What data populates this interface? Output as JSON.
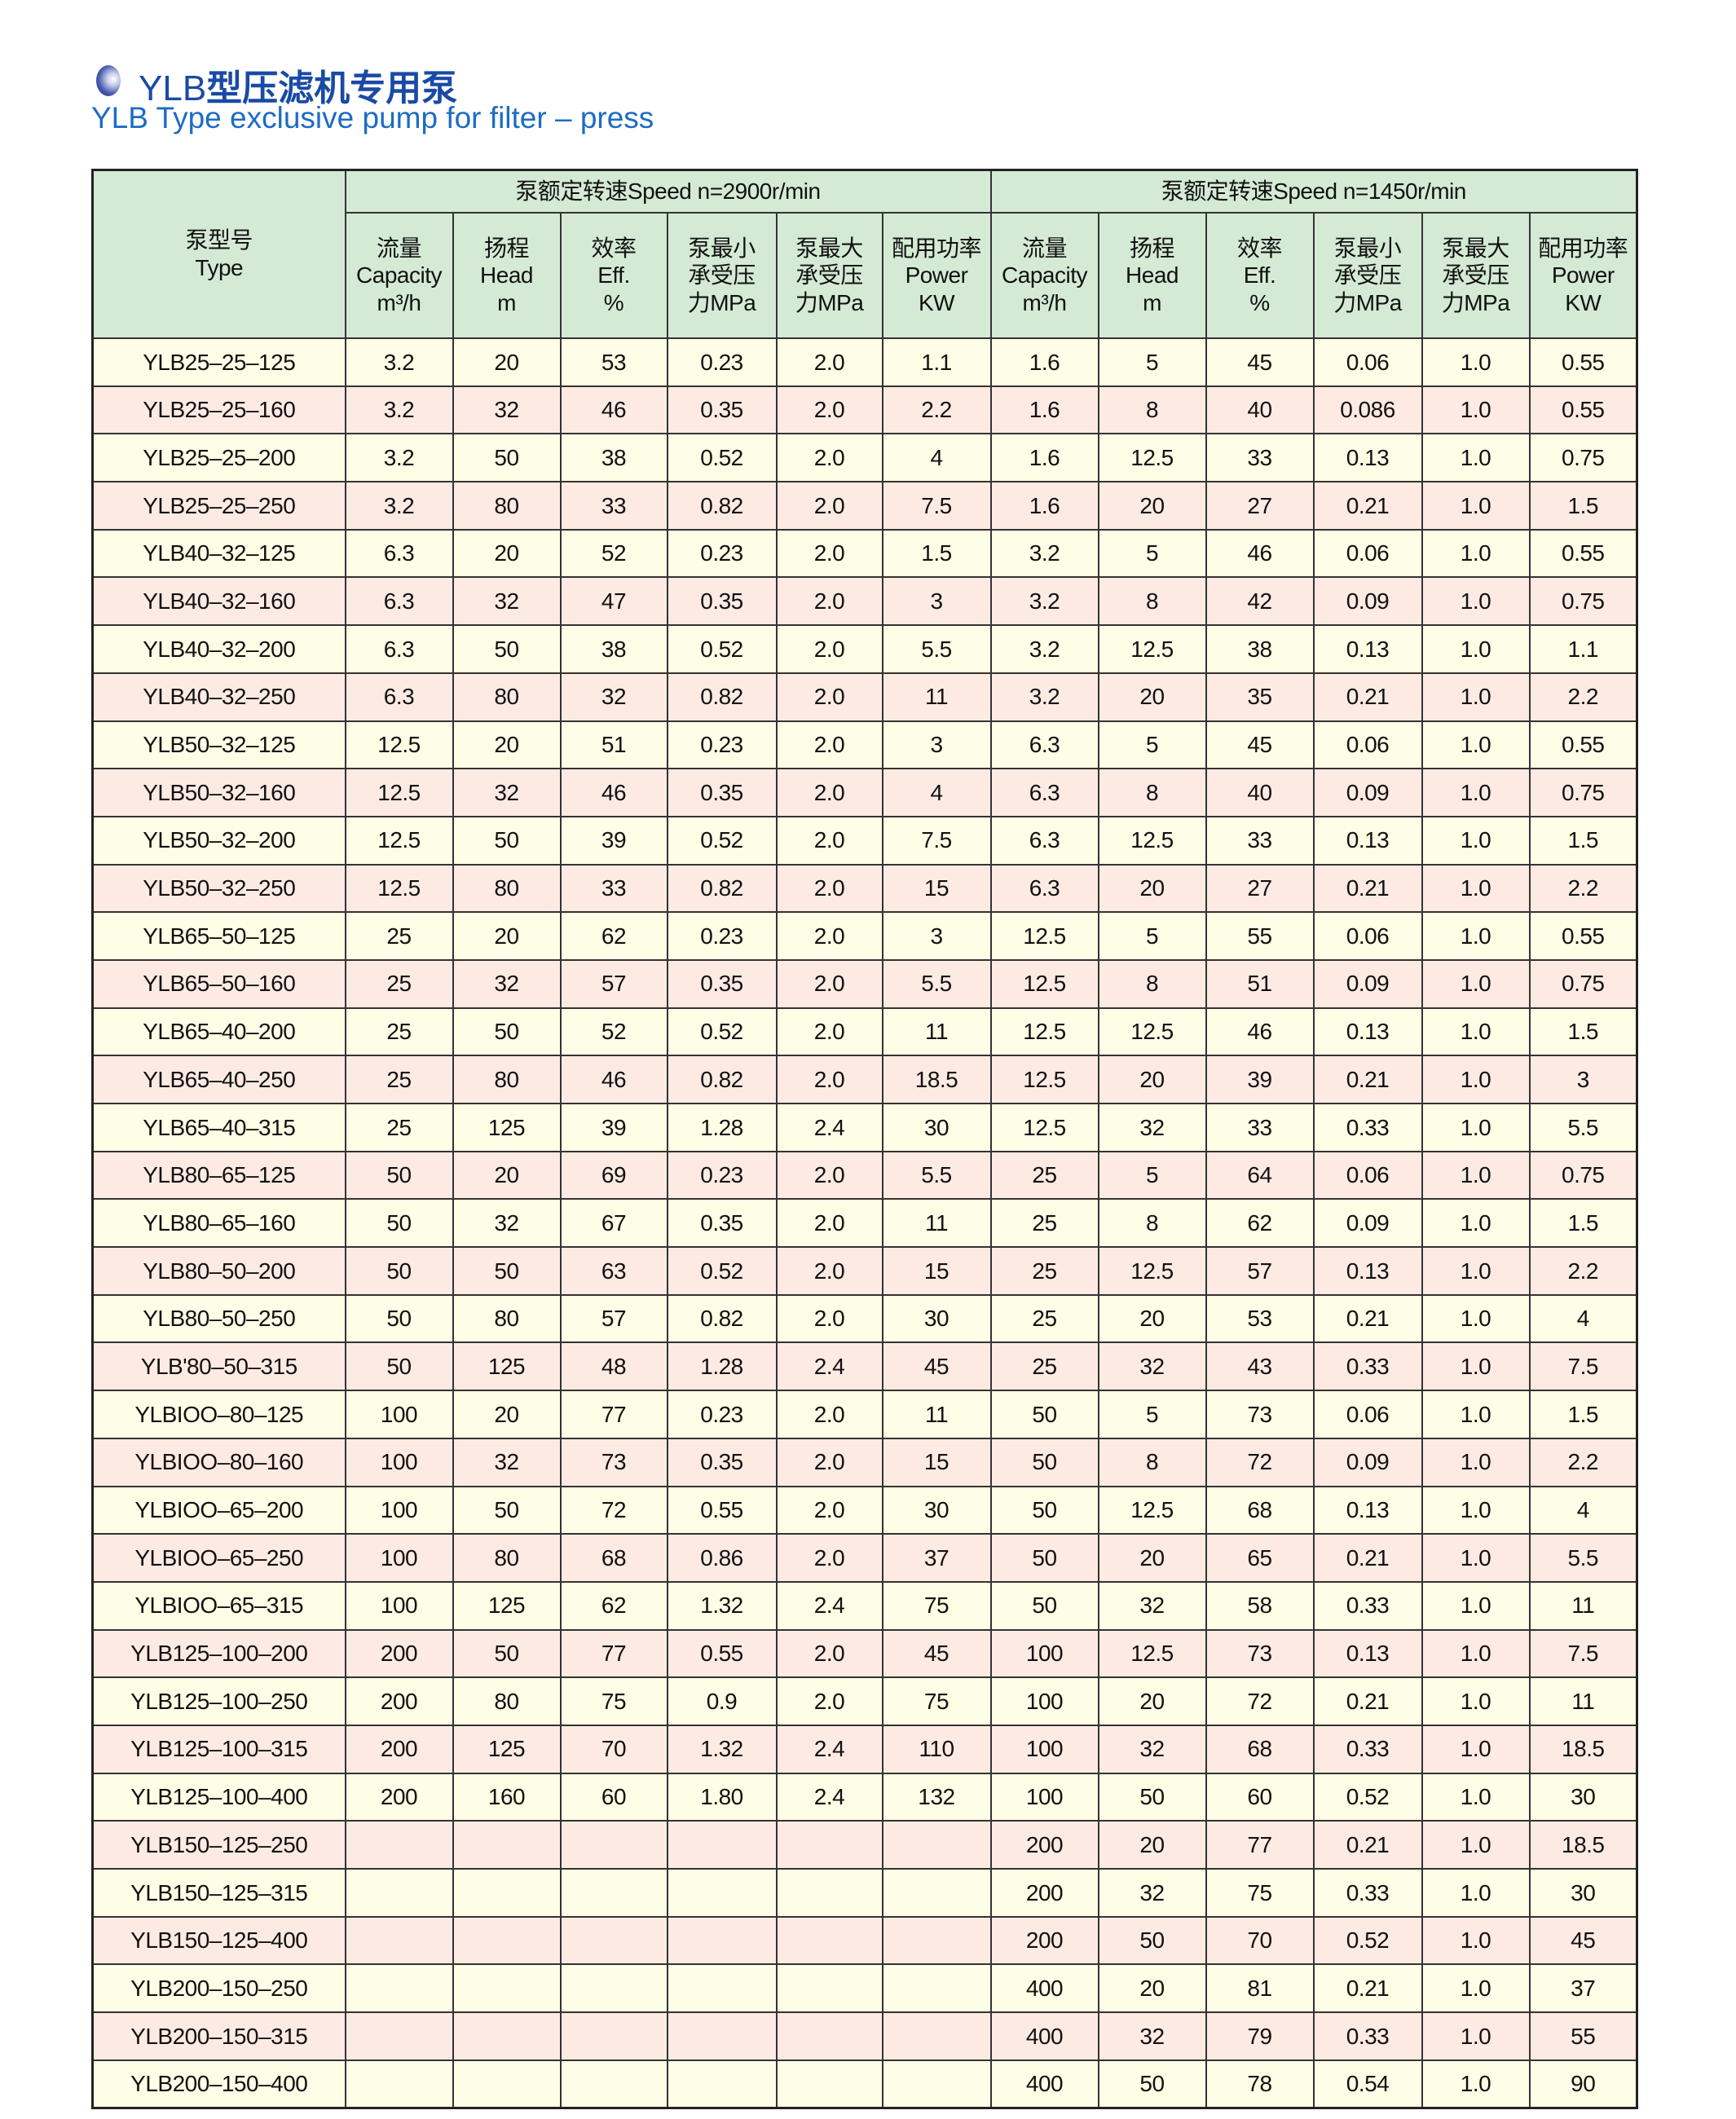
{
  "title": {
    "latin": "YLB",
    "cjk": "型压滤机专用泵",
    "subtitle": "YLB Type exclusive pump for filter – press",
    "bullet_icon": "sphere-bullet-icon",
    "color": "#1a4aa6"
  },
  "table": {
    "type_header": [
      "泵型号",
      "Type"
    ],
    "speed_groups": [
      "泵额定转速Speed n=2900r/min",
      "泵额定转速Speed n=1450r/min"
    ],
    "columns": [
      [
        "流量",
        "Capacity",
        "m³/h"
      ],
      [
        "扬程",
        "Head",
        "m"
      ],
      [
        "效率",
        "Eff.",
        "%"
      ],
      [
        "泵最小",
        "承受压",
        "力MPa"
      ],
      [
        "泵最大",
        "承受压",
        "力MPa"
      ],
      [
        "配用功率",
        "Power",
        "KW"
      ]
    ],
    "colors": {
      "header": "#d4ead5",
      "row_odd": "#fefde6",
      "row_even": "#fdebe3"
    },
    "rows": [
      [
        "YLB25–25–125",
        "3.2",
        "20",
        "53",
        "0.23",
        "2.0",
        "1.1",
        "1.6",
        "5",
        "45",
        "0.06",
        "1.0",
        "0.55"
      ],
      [
        "YLB25–25–160",
        "3.2",
        "32",
        "46",
        "0.35",
        "2.0",
        "2.2",
        "1.6",
        "8",
        "40",
        "0.086",
        "1.0",
        "0.55"
      ],
      [
        "YLB25–25–200",
        "3.2",
        "50",
        "38",
        "0.52",
        "2.0",
        "4",
        "1.6",
        "12.5",
        "33",
        "0.13",
        "1.0",
        "0.75"
      ],
      [
        "YLB25–25–250",
        "3.2",
        "80",
        "33",
        "0.82",
        "2.0",
        "7.5",
        "1.6",
        "20",
        "27",
        "0.21",
        "1.0",
        "1.5"
      ],
      [
        "YLB40–32–125",
        "6.3",
        "20",
        "52",
        "0.23",
        "2.0",
        "1.5",
        "3.2",
        "5",
        "46",
        "0.06",
        "1.0",
        "0.55"
      ],
      [
        "YLB40–32–160",
        "6.3",
        "32",
        "47",
        "0.35",
        "2.0",
        "3",
        "3.2",
        "8",
        "42",
        "0.09",
        "1.0",
        "0.75"
      ],
      [
        "YLB40–32–200",
        "6.3",
        "50",
        "38",
        "0.52",
        "2.0",
        "5.5",
        "3.2",
        "12.5",
        "38",
        "0.13",
        "1.0",
        "1.1"
      ],
      [
        "YLB40–32–250",
        "6.3",
        "80",
        "32",
        "0.82",
        "2.0",
        "11",
        "3.2",
        "20",
        "35",
        "0.21",
        "1.0",
        "2.2"
      ],
      [
        "YLB50–32–125",
        "12.5",
        "20",
        "51",
        "0.23",
        "2.0",
        "3",
        "6.3",
        "5",
        "45",
        "0.06",
        "1.0",
        "0.55"
      ],
      [
        "YLB50–32–160",
        "12.5",
        "32",
        "46",
        "0.35",
        "2.0",
        "4",
        "6.3",
        "8",
        "40",
        "0.09",
        "1.0",
        "0.75"
      ],
      [
        "YLB50–32–200",
        "12.5",
        "50",
        "39",
        "0.52",
        "2.0",
        "7.5",
        "6.3",
        "12.5",
        "33",
        "0.13",
        "1.0",
        "1.5"
      ],
      [
        "YLB50–32–250",
        "12.5",
        "80",
        "33",
        "0.82",
        "2.0",
        "15",
        "6.3",
        "20",
        "27",
        "0.21",
        "1.0",
        "2.2"
      ],
      [
        "YLB65–50–125",
        "25",
        "20",
        "62",
        "0.23",
        "2.0",
        "3",
        "12.5",
        "5",
        "55",
        "0.06",
        "1.0",
        "0.55"
      ],
      [
        "YLB65–50–160",
        "25",
        "32",
        "57",
        "0.35",
        "2.0",
        "5.5",
        "12.5",
        "8",
        "51",
        "0.09",
        "1.0",
        "0.75"
      ],
      [
        "YLB65–40–200",
        "25",
        "50",
        "52",
        "0.52",
        "2.0",
        "11",
        "12.5",
        "12.5",
        "46",
        "0.13",
        "1.0",
        "1.5"
      ],
      [
        "YLB65–40–250",
        "25",
        "80",
        "46",
        "0.82",
        "2.0",
        "18.5",
        "12.5",
        "20",
        "39",
        "0.21",
        "1.0",
        "3"
      ],
      [
        "YLB65–40–315",
        "25",
        "125",
        "39",
        "1.28",
        "2.4",
        "30",
        "12.5",
        "32",
        "33",
        "0.33",
        "1.0",
        "5.5"
      ],
      [
        "YLB80–65–125",
        "50",
        "20",
        "69",
        "0.23",
        "2.0",
        "5.5",
        "25",
        "5",
        "64",
        "0.06",
        "1.0",
        "0.75"
      ],
      [
        "YLB80–65–160",
        "50",
        "32",
        "67",
        "0.35",
        "2.0",
        "11",
        "25",
        "8",
        "62",
        "0.09",
        "1.0",
        "1.5"
      ],
      [
        "YLB80–50–200",
        "50",
        "50",
        "63",
        "0.52",
        "2.0",
        "15",
        "25",
        "12.5",
        "57",
        "0.13",
        "1.0",
        "2.2"
      ],
      [
        "YLB80–50–250",
        "50",
        "80",
        "57",
        "0.82",
        "2.0",
        "30",
        "25",
        "20",
        "53",
        "0.21",
        "1.0",
        "4"
      ],
      [
        "YLB'80–50–315",
        "50",
        "125",
        "48",
        "1.28",
        "2.4",
        "45",
        "25",
        "32",
        "43",
        "0.33",
        "1.0",
        "7.5"
      ],
      [
        "YLBIOO–80–125",
        "100",
        "20",
        "77",
        "0.23",
        "2.0",
        "11",
        "50",
        "5",
        "73",
        "0.06",
        "1.0",
        "1.5"
      ],
      [
        "YLBIOO–80–160",
        "100",
        "32",
        "73",
        "0.35",
        "2.0",
        "15",
        "50",
        "8",
        "72",
        "0.09",
        "1.0",
        "2.2"
      ],
      [
        "YLBIOO–65–200",
        "100",
        "50",
        "72",
        "0.55",
        "2.0",
        "30",
        "50",
        "12.5",
        "68",
        "0.13",
        "1.0",
        "4"
      ],
      [
        "YLBIOO–65–250",
        "100",
        "80",
        "68",
        "0.86",
        "2.0",
        "37",
        "50",
        "20",
        "65",
        "0.21",
        "1.0",
        "5.5"
      ],
      [
        "YLBIOO–65–315",
        "100",
        "125",
        "62",
        "1.32",
        "2.4",
        "75",
        "50",
        "32",
        "58",
        "0.33",
        "1.0",
        "11"
      ],
      [
        "YLB125–100–200",
        "200",
        "50",
        "77",
        "0.55",
        "2.0",
        "45",
        "100",
        "12.5",
        "73",
        "0.13",
        "1.0",
        "7.5"
      ],
      [
        "YLB125–100–250",
        "200",
        "80",
        "75",
        "0.9",
        "2.0",
        "75",
        "100",
        "20",
        "72",
        "0.21",
        "1.0",
        "11"
      ],
      [
        "YLB125–100–315",
        "200",
        "125",
        "70",
        "1.32",
        "2.4",
        "110",
        "100",
        "32",
        "68",
        "0.33",
        "1.0",
        "18.5"
      ],
      [
        "YLB125–100–400",
        "200",
        "160",
        "60",
        "1.80",
        "2.4",
        "132",
        "100",
        "50",
        "60",
        "0.52",
        "1.0",
        "30"
      ],
      [
        "YLB150–125–250",
        "",
        "",
        "",
        "",
        "",
        "",
        "200",
        "20",
        "77",
        "0.21",
        "1.0",
        "18.5"
      ],
      [
        "YLB150–125–315",
        "",
        "",
        "",
        "",
        "",
        "",
        "200",
        "32",
        "75",
        "0.33",
        "1.0",
        "30"
      ],
      [
        "YLB150–125–400",
        "",
        "",
        "",
        "",
        "",
        "",
        "200",
        "50",
        "70",
        "0.52",
        "1.0",
        "45"
      ],
      [
        "YLB200–150–250",
        "",
        "",
        "",
        "",
        "",
        "",
        "400",
        "20",
        "81",
        "0.21",
        "1.0",
        "37"
      ],
      [
        "YLB200–150–315",
        "",
        "",
        "",
        "",
        "",
        "",
        "400",
        "32",
        "79",
        "0.33",
        "1.0",
        "55"
      ],
      [
        "YLB200–150–400",
        "",
        "",
        "",
        "",
        "",
        "",
        "400",
        "50",
        "78",
        "0.54",
        "1.0",
        "90"
      ]
    ]
  }
}
